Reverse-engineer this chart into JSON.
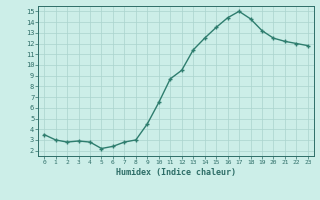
{
  "x": [
    0,
    1,
    2,
    3,
    4,
    5,
    6,
    7,
    8,
    9,
    10,
    11,
    12,
    13,
    14,
    15,
    16,
    17,
    18,
    19,
    20,
    21,
    22,
    23
  ],
  "y": [
    3.5,
    3.0,
    2.8,
    2.9,
    2.8,
    2.2,
    2.4,
    2.8,
    3.0,
    4.5,
    6.5,
    8.7,
    9.5,
    11.4,
    12.5,
    13.5,
    14.4,
    15.0,
    14.3,
    13.2,
    12.5,
    12.2,
    12.0,
    11.8
  ],
  "line_color": "#2e7d6e",
  "marker": "+",
  "bg_color": "#cceee8",
  "grid_color": "#aad4ce",
  "xlabel": "Humidex (Indice chaleur)",
  "ylim": [
    1.5,
    15.5
  ],
  "xlim": [
    -0.5,
    23.5
  ],
  "yticks": [
    2,
    3,
    4,
    5,
    6,
    7,
    8,
    9,
    10,
    11,
    12,
    13,
    14,
    15
  ],
  "xticks": [
    0,
    1,
    2,
    3,
    4,
    5,
    6,
    7,
    8,
    9,
    10,
    11,
    12,
    13,
    14,
    15,
    16,
    17,
    18,
    19,
    20,
    21,
    22,
    23
  ],
  "linewidth": 1.0,
  "markersize": 3.5,
  "tick_color": "#2e6e68",
  "spine_color": "#2e6e68"
}
